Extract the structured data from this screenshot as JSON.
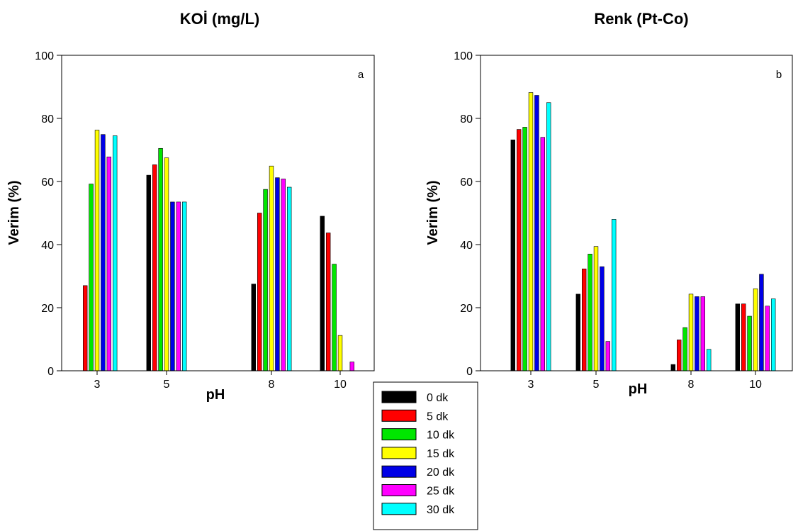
{
  "colors": {
    "0 dk": "#000000",
    "5 dk": "#ff0000",
    "10 dk": "#00e600",
    "15 dk": "#ffff00",
    "20 dk": "#0000e6",
    "25 dk": "#ff00ff",
    "30 dk": "#00ffff"
  },
  "legend": {
    "placement": "bottom-center",
    "entries": [
      "0 dk",
      "5 dk",
      "10 dk",
      "15 dk",
      "20 dk",
      "25 dk",
      "30 dk"
    ]
  },
  "chart_data": [
    {
      "type": "bar",
      "title": "KOİ (mg/L)",
      "panel_label": "a",
      "xlabel": "pH",
      "ylabel": "Verim (%)",
      "ylim": [
        0,
        100
      ],
      "yticks": [
        0,
        20,
        40,
        60,
        80,
        100
      ],
      "grid": false,
      "categories": [
        "3",
        "5",
        "8",
        "10"
      ],
      "series": [
        {
          "name": "0 dk",
          "values": [
            0,
            62,
            27.5,
            49
          ]
        },
        {
          "name": "5 dk",
          "values": [
            27,
            65.3,
            50,
            43.7
          ]
        },
        {
          "name": "10 dk",
          "values": [
            59.2,
            70.5,
            57.5,
            33.8
          ]
        },
        {
          "name": "15 dk",
          "values": [
            76.3,
            67.5,
            64.9,
            11.2
          ]
        },
        {
          "name": "20 dk",
          "values": [
            74.9,
            53.5,
            61.2,
            0
          ]
        },
        {
          "name": "25 dk",
          "values": [
            67.8,
            53.5,
            60.8,
            2.8
          ]
        },
        {
          "name": "30 dk",
          "values": [
            74.5,
            53.5,
            58.2,
            0
          ]
        }
      ]
    },
    {
      "type": "bar",
      "title": "Renk (Pt-Co)",
      "panel_label": "b",
      "xlabel": "pH",
      "ylabel": "Verim (%)",
      "ylim": [
        0,
        100
      ],
      "yticks": [
        0,
        20,
        40,
        60,
        80,
        100
      ],
      "grid": false,
      "categories": [
        "3",
        "5",
        "8",
        "10"
      ],
      "series": [
        {
          "name": "0 dk",
          "values": [
            73.2,
            24.3,
            2,
            21.2
          ]
        },
        {
          "name": "5 dk",
          "values": [
            76.5,
            32.3,
            9.8,
            21.2
          ]
        },
        {
          "name": "10 dk",
          "values": [
            77.2,
            37,
            13.7,
            17.3
          ]
        },
        {
          "name": "15 dk",
          "values": [
            88.2,
            39.4,
            24.3,
            26
          ]
        },
        {
          "name": "20 dk",
          "values": [
            87.3,
            33,
            23.5,
            30.6
          ]
        },
        {
          "name": "25 dk",
          "values": [
            74,
            9.3,
            23.5,
            20.5
          ]
        },
        {
          "name": "30 dk",
          "values": [
            85,
            48,
            6.8,
            22.8
          ]
        }
      ]
    }
  ]
}
